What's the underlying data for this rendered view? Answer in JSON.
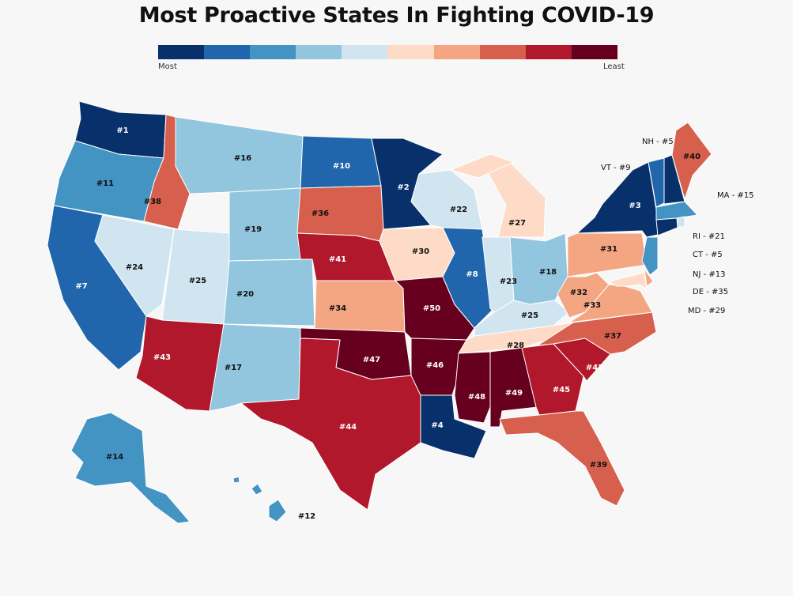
{
  "title": "Most Proactive States In Fighting COVID-19",
  "legend": {
    "colors": [
      "#08306b",
      "#2166ac",
      "#4393c3",
      "#92c5de",
      "#d1e5f0",
      "#fddbc7",
      "#f4a582",
      "#d6604d",
      "#b2182b",
      "#67001f"
    ],
    "low_label": "Most",
    "high_label": "Least"
  },
  "states": [
    {
      "abbr": "WA",
      "rank": 1,
      "label": "#1"
    },
    {
      "abbr": "OR",
      "rank": 11,
      "label": "#11"
    },
    {
      "abbr": "CA",
      "rank": 7,
      "label": "#7"
    },
    {
      "abbr": "NV",
      "rank": 24,
      "label": "#24"
    },
    {
      "abbr": "ID",
      "rank": 38,
      "label": "#38"
    },
    {
      "abbr": "MT",
      "rank": 16,
      "label": "#16"
    },
    {
      "abbr": "WY",
      "rank": 19,
      "label": "#19"
    },
    {
      "abbr": "UT",
      "rank": 25,
      "label": "#25"
    },
    {
      "abbr": "CO",
      "rank": 20,
      "label": "#20"
    },
    {
      "abbr": "AZ",
      "rank": 43,
      "label": "#43"
    },
    {
      "abbr": "NM",
      "rank": 17,
      "label": "#17"
    },
    {
      "abbr": "ND",
      "rank": 10,
      "label": "#10"
    },
    {
      "abbr": "SD",
      "rank": 36,
      "label": "#36"
    },
    {
      "abbr": "NE",
      "rank": 41,
      "label": "#41"
    },
    {
      "abbr": "KS",
      "rank": 34,
      "label": "#34"
    },
    {
      "abbr": "OK",
      "rank": 47,
      "label": "#47"
    },
    {
      "abbr": "TX",
      "rank": 44,
      "label": "#44"
    },
    {
      "abbr": "MN",
      "rank": 2,
      "label": "#2"
    },
    {
      "abbr": "IA",
      "rank": 30,
      "label": "#30"
    },
    {
      "abbr": "MO",
      "rank": 50,
      "label": "#50"
    },
    {
      "abbr": "AR",
      "rank": 46,
      "label": "#46"
    },
    {
      "abbr": "LA",
      "rank": 4,
      "label": "#4"
    },
    {
      "abbr": "WI",
      "rank": 22,
      "label": "#22"
    },
    {
      "abbr": "IL",
      "rank": 8,
      "label": "#8"
    },
    {
      "abbr": "MI",
      "rank": 27,
      "label": "#27"
    },
    {
      "abbr": "IN",
      "rank": 23,
      "label": "#23"
    },
    {
      "abbr": "OH",
      "rank": 18,
      "label": "#18"
    },
    {
      "abbr": "KY",
      "rank": 25,
      "label": "#25"
    },
    {
      "abbr": "TN",
      "rank": 28,
      "label": "#28"
    },
    {
      "abbr": "MS",
      "rank": 48,
      "label": "#48"
    },
    {
      "abbr": "AL",
      "rank": 49,
      "label": "#49"
    },
    {
      "abbr": "GA",
      "rank": 45,
      "label": "#45"
    },
    {
      "abbr": "FL",
      "rank": 39,
      "label": "#39"
    },
    {
      "abbr": "SC",
      "rank": 42,
      "label": "#42"
    },
    {
      "abbr": "NC",
      "rank": 37,
      "label": "#37"
    },
    {
      "abbr": "VA",
      "rank": 33,
      "label": "#33"
    },
    {
      "abbr": "WV",
      "rank": 32,
      "label": "#32"
    },
    {
      "abbr": "PA",
      "rank": 31,
      "label": "#31"
    },
    {
      "abbr": "NY",
      "rank": 3,
      "label": "#3"
    },
    {
      "abbr": "VT",
      "rank": 9,
      "label": ""
    },
    {
      "abbr": "NH",
      "rank": 5,
      "label": ""
    },
    {
      "abbr": "ME",
      "rank": 40,
      "label": "#40"
    },
    {
      "abbr": "MA",
      "rank": 15,
      "label": ""
    },
    {
      "abbr": "RI",
      "rank": 21,
      "label": ""
    },
    {
      "abbr": "CT",
      "rank": 5,
      "label": ""
    },
    {
      "abbr": "NJ",
      "rank": 13,
      "label": ""
    },
    {
      "abbr": "DE",
      "rank": 35,
      "label": ""
    },
    {
      "abbr": "MD",
      "rank": 29,
      "label": ""
    },
    {
      "abbr": "AK",
      "rank": 14,
      "label": "#14"
    },
    {
      "abbr": "HI",
      "rank": 12,
      "label": "#12"
    }
  ],
  "callouts": [
    {
      "abbr": "NH",
      "text": "NH - #5"
    },
    {
      "abbr": "VT",
      "text": "VT - #9"
    },
    {
      "abbr": "MA",
      "text": "MA - #15"
    },
    {
      "abbr": "RI",
      "text": "RI - #21"
    },
    {
      "abbr": "CT",
      "text": "CT - #5"
    },
    {
      "abbr": "NJ",
      "text": "NJ - #13"
    },
    {
      "abbr": "DE",
      "text": "DE - #35"
    },
    {
      "abbr": "MD",
      "text": "MD - #29"
    }
  ]
}
